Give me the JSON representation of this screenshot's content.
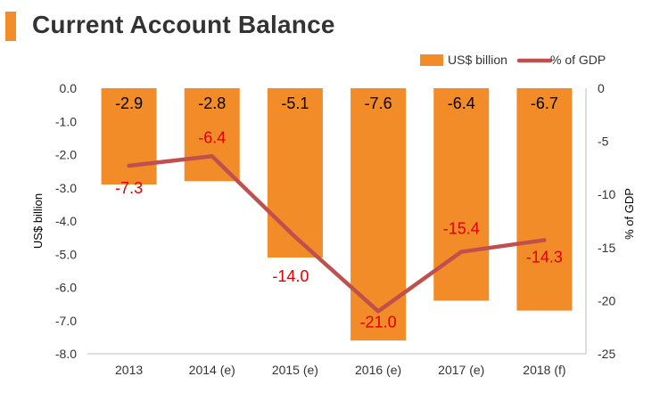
{
  "header": {
    "title": "Current Account Balance"
  },
  "colors": {
    "bar": "#f28c28",
    "line": "#c0504d",
    "line_label": "#e00000",
    "accent": "#f28c28"
  },
  "chart_data": {
    "type": "bar",
    "categories": [
      "2013",
      "2014 (e)",
      "2015 (e)",
      "2016 (e)",
      "2017 (e)",
      "2018 (f)"
    ],
    "series": [
      {
        "name": "US$ billion",
        "type": "bar",
        "axis": "left",
        "values": [
          -2.9,
          -2.8,
          -5.1,
          -7.6,
          -6.4,
          -6.7
        ],
        "labels": [
          "-2.9",
          "-2.8",
          "-5.1",
          "-7.6",
          "-6.4",
          "-6.7"
        ]
      },
      {
        "name": "% of GDP",
        "type": "line",
        "axis": "right",
        "values": [
          -7.3,
          -6.4,
          -14.0,
          -21.0,
          -15.4,
          -14.3
        ],
        "labels": [
          "-7.3",
          "-6.4",
          "-14.0",
          "-21.0",
          "-15.4",
          "-14.3"
        ]
      }
    ],
    "ylabel": "US$ billion",
    "ylabel_right": "% of GDP",
    "ylim": [
      -8.0,
      0.0
    ],
    "ylim_right": [
      -25,
      0
    ],
    "yticks": [
      "0.0",
      "-1.0",
      "-2.0",
      "-3.0",
      "-4.0",
      "-5.0",
      "-6.0",
      "-7.0",
      "-8.0"
    ],
    "yticks_right": [
      "0",
      "-5",
      "-10",
      "-15",
      "-20",
      "-25"
    ],
    "legend": "top-right",
    "grid": false
  }
}
